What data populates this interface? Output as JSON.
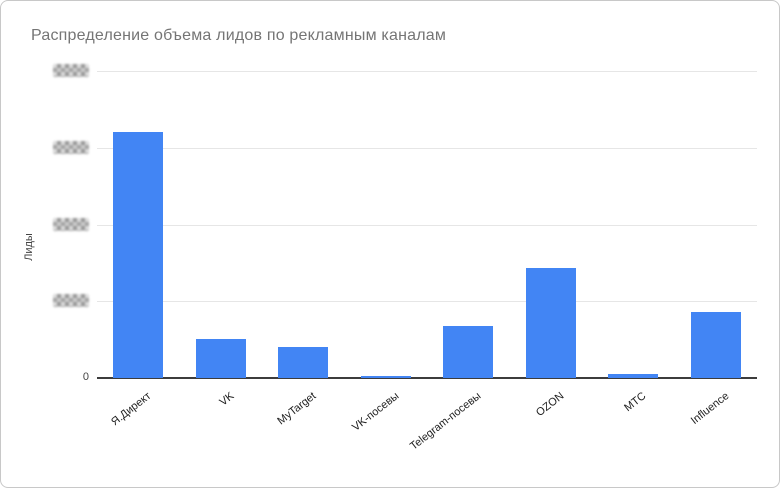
{
  "title": "Распределение объема лидов по рекламным каналам",
  "y_axis": {
    "label": "Лиды",
    "zero_label": "0",
    "upper_tick_labels_redacted": true
  },
  "chart_data": {
    "type": "bar",
    "title": "Распределение объема лидов по рекламным каналам",
    "xlabel": "",
    "ylabel": "Лиды",
    "categories": [
      "Я.Директ",
      "VK",
      "MyTarget",
      "VK-посевы",
      "Telegram-посевы",
      "OZON",
      "МТС",
      "Influence"
    ],
    "values": [
      320,
      51,
      40,
      3,
      68,
      143,
      5,
      86
    ],
    "ylim": [
      0,
      400
    ],
    "gridlines": [
      0,
      100,
      200,
      300,
      400
    ],
    "y_tick_labels": [
      "0",
      "redacted",
      "redacted",
      "redacted",
      "redacted"
    ],
    "grid": true,
    "legend": "none",
    "bar_color": "#4285f4"
  }
}
